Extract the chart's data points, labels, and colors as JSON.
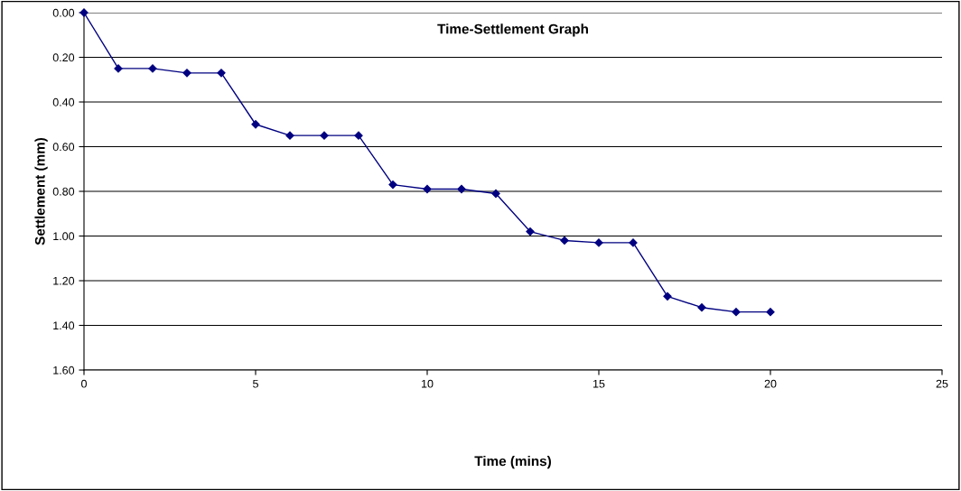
{
  "chart_data": {
    "type": "line",
    "title": "Time-Settlement Graph",
    "xlabel": "Time (mins)",
    "ylabel": "Settlement (mm)",
    "x": [
      0,
      1,
      2,
      3,
      4,
      5,
      6,
      7,
      8,
      9,
      10,
      11,
      12,
      13,
      14,
      15,
      16,
      17,
      18,
      19,
      20
    ],
    "series": [
      {
        "color": "#000080",
        "values": [
          0,
          0.25,
          0.25,
          0.27,
          0.27,
          0.5,
          0.55,
          0.55,
          0.55,
          0.77,
          0.79,
          0.79,
          0.81,
          0.98,
          1.02,
          1.03,
          1.03,
          1.27,
          1.32,
          1.34,
          1.34
        ]
      }
    ],
    "xlim": [
      0,
      25
    ],
    "xticks": [
      0,
      5,
      10,
      15,
      20,
      25
    ],
    "ylim": [
      1.6,
      0
    ],
    "yticks": [
      {
        "value": 0,
        "label": "0.00"
      },
      {
        "value": 0.2,
        "label": "0.20"
      },
      {
        "value": 0.4,
        "label": "0.40"
      },
      {
        "value": 0.6,
        "label": "0.60"
      },
      {
        "value": 0.8,
        "label": "0.80"
      },
      {
        "value": 1.0,
        "label": "1.00"
      },
      {
        "value": 1.2,
        "label": "1.20"
      },
      {
        "value": 1.4,
        "label": "1.40"
      },
      {
        "value": 1.6,
        "label": "1.60"
      }
    ],
    "grid": "y",
    "marker": "diamond",
    "line_style": "solid",
    "legend": false
  }
}
